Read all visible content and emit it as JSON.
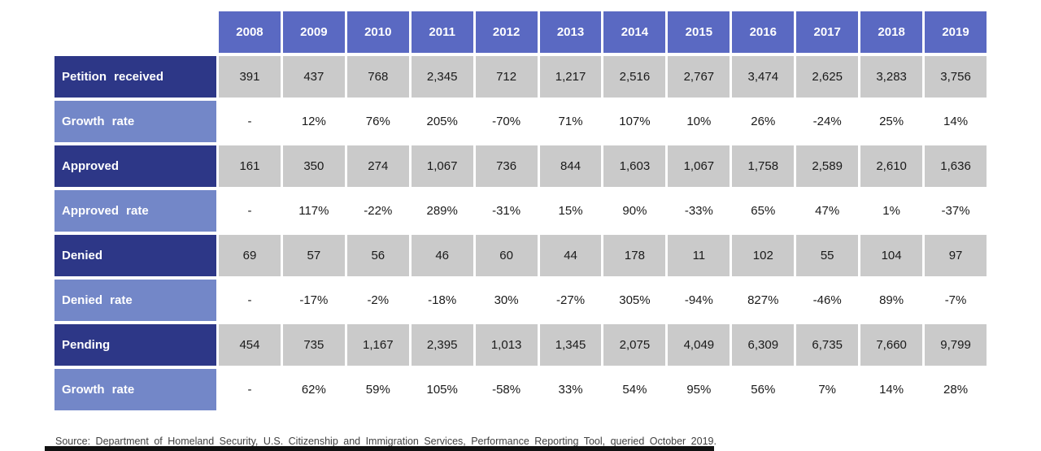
{
  "chart_data": {
    "type": "table",
    "title": "",
    "categories": [
      "2008",
      "2009",
      "2010",
      "2011",
      "2012",
      "2013",
      "2014",
      "2015",
      "2016",
      "2017",
      "2018",
      "2019"
    ],
    "rows": [
      {
        "label": "Petition received",
        "kind": "count",
        "values": [
          "391",
          "437",
          "768",
          "2,345",
          "712",
          "1,217",
          "2,516",
          "2,767",
          "3,474",
          "2,625",
          "3,283",
          "3,756"
        ]
      },
      {
        "label": "Growth rate",
        "kind": "rate",
        "values": [
          "-",
          "12%",
          "76%",
          "205%",
          "-70%",
          "71%",
          "107%",
          "10%",
          "26%",
          "-24%",
          "25%",
          "14%"
        ]
      },
      {
        "label": "Approved",
        "kind": "count",
        "values": [
          "161",
          "350",
          "274",
          "1,067",
          "736",
          "844",
          "1,603",
          "1,067",
          "1,758",
          "2,589",
          "2,610",
          "1,636"
        ]
      },
      {
        "label": "Approved rate",
        "kind": "rate",
        "values": [
          "-",
          "117%",
          "-22%",
          "289%",
          "-31%",
          "15%",
          "90%",
          "-33%",
          "65%",
          "47%",
          "1%",
          "-37%"
        ]
      },
      {
        "label": "Denied",
        "kind": "count",
        "values": [
          "69",
          "57",
          "56",
          "46",
          "60",
          "44",
          "178",
          "11",
          "102",
          "55",
          "104",
          "97"
        ]
      },
      {
        "label": "Denied rate",
        "kind": "rate",
        "values": [
          "-",
          "-17%",
          "-2%",
          "-18%",
          "30%",
          "-27%",
          "305%",
          "-94%",
          "827%",
          "-46%",
          "89%",
          "-7%"
        ]
      },
      {
        "label": "Pending",
        "kind": "count",
        "values": [
          "454",
          "735",
          "1,167",
          "2,395",
          "1,013",
          "1,345",
          "2,075",
          "4,049",
          "6,309",
          "6,735",
          "7,660",
          "9,799"
        ]
      },
      {
        "label": "Growth rate",
        "kind": "rate",
        "values": [
          "-",
          "62%",
          "59%",
          "105%",
          "-58%",
          "33%",
          "54%",
          "95%",
          "56%",
          "7%",
          "14%",
          "28%"
        ]
      }
    ],
    "legend": "none",
    "grid": "off"
  },
  "source": "Source: Department of Homeland Security, U.S. Citizenship and Immigration Services, Performance Reporting Tool, queried October 2019.",
  "colors": {
    "header_blue": "#5A69C2",
    "dark_navy": "#2D3787",
    "light_blue": "#7387C8",
    "cell_gray": "#CACACA",
    "bottom_bar": "#111111"
  }
}
